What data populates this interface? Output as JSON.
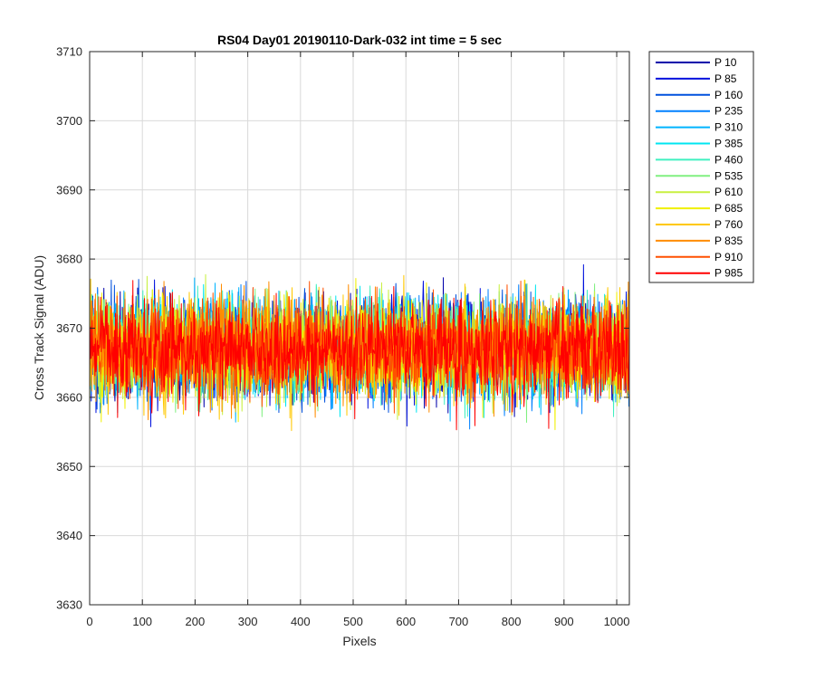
{
  "chart_data": {
    "type": "line",
    "title": "RS04 Day01 20190110-Dark-032 int time = 5 sec",
    "xlabel": "Pixels",
    "ylabel": "Cross Track Signal (ADU)",
    "xlim": [
      0,
      1024
    ],
    "ylim": [
      3630,
      3710
    ],
    "xticks": [
      0,
      100,
      200,
      300,
      400,
      500,
      600,
      700,
      800,
      900,
      1000
    ],
    "yticks": [
      3630,
      3640,
      3650,
      3660,
      3670,
      3680,
      3690,
      3700,
      3710
    ],
    "grid": true,
    "legend_position": "outside-right",
    "noise_mean": 3667,
    "noise_std": 7,
    "series": [
      {
        "name": "P 10",
        "color": "#0000aa"
      },
      {
        "name": "P 85",
        "color": "#0011dd"
      },
      {
        "name": "P 160",
        "color": "#0050dd"
      },
      {
        "name": "P 235",
        "color": "#0080ff"
      },
      {
        "name": "P 310",
        "color": "#00b4ff"
      },
      {
        "name": "P 385",
        "color": "#00e6f0"
      },
      {
        "name": "P 460",
        "color": "#40f0c0"
      },
      {
        "name": "P 535",
        "color": "#80f080"
      },
      {
        "name": "P 610",
        "color": "#c8f040"
      },
      {
        "name": "P 685",
        "color": "#f0f000"
      },
      {
        "name": "P 760",
        "color": "#ffc800"
      },
      {
        "name": "P 835",
        "color": "#ff8c00"
      },
      {
        "name": "P 910",
        "color": "#ff5000"
      },
      {
        "name": "P 985",
        "color": "#ff0000"
      }
    ]
  }
}
